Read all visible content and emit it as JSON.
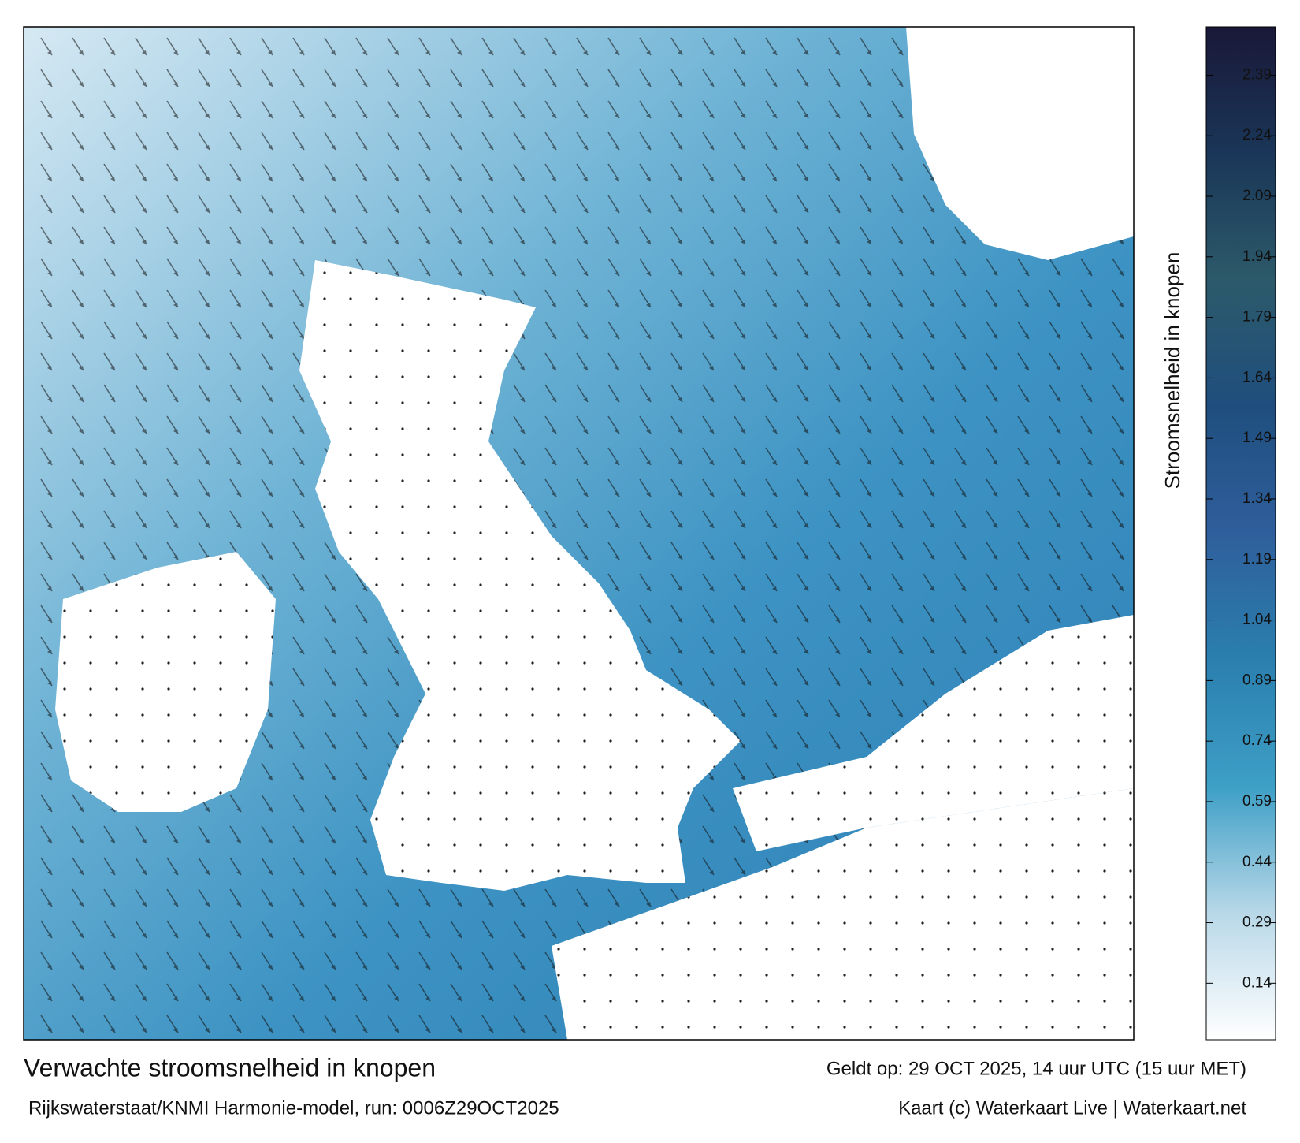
{
  "title": "Verwachte stroomsnelheid in knopen",
  "subtitle": "Rijkswaterstaat/KNMI Harmonie-model, run: 0006Z29OCT2025",
  "valid": "Geldt op: 29 OCT 2025, 14 uur UTC (15 uur MET)",
  "credit": "Kaart (c) Waterkaart Live | Waterkaart.net",
  "colorbar": {
    "label": "Stroomsnelheid in knopen",
    "lim": [
      0,
      2.51
    ],
    "ticks": [
      0.14,
      0.29,
      0.44,
      0.59,
      0.74,
      0.89,
      1.04,
      1.19,
      1.34,
      1.49,
      1.64,
      1.79,
      1.94,
      2.09,
      2.24,
      2.39
    ],
    "colors": [
      "#ffffff",
      "#b8d8e8",
      "#3e9fc6",
      "#2a7fae",
      "#2f5f9c",
      "#1f4e7e",
      "#2c5a6a",
      "#1a3658",
      "#1a1838"
    ]
  }
}
